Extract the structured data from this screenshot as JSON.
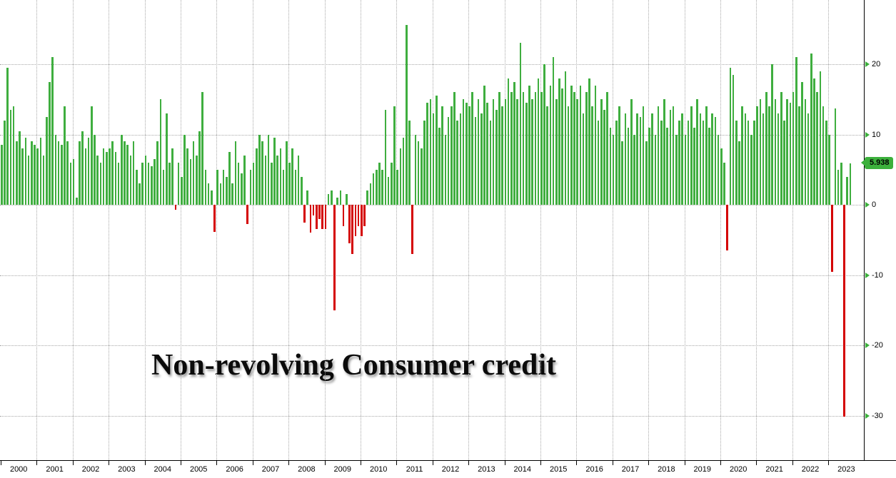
{
  "chart": {
    "title": "Non-revolving Consumer credit",
    "last_value_label": "5.938",
    "colors": {
      "positive": "#3fae3f",
      "negative": "#d40000",
      "accent_green": "#3cb03c",
      "grid": "#a8a8a8",
      "axis": "#000000",
      "background": "#ffffff",
      "title_text": "#0b0b0b"
    },
    "y_axis": {
      "ticks": [
        20,
        10,
        0,
        -10,
        -20,
        -30
      ]
    },
    "x_axis": {
      "years": [
        "2000",
        "2001",
        "2002",
        "2003",
        "2004",
        "2005",
        "2006",
        "2007",
        "2008",
        "2009",
        "2010",
        "2011",
        "2012",
        "2013",
        "2014",
        "2015",
        "2016",
        "2017",
        "2018",
        "2019",
        "2020",
        "2021",
        "2022",
        "2023"
      ]
    }
  },
  "chart_data": {
    "type": "bar",
    "title": "Non-revolving Consumer credit",
    "frequency": "monthly",
    "x_start": "2000-01",
    "ylim": [
      -36,
      29
    ],
    "yticks": [
      20,
      10,
      0,
      -10,
      -20,
      -30
    ],
    "grid": true,
    "legend": "none",
    "last_value": 5.938,
    "series": [
      {
        "year": 2000,
        "values": [
          8.5,
          12,
          19.5,
          13.5,
          14,
          9,
          10.5,
          8,
          9.5,
          7,
          9,
          8.5
        ]
      },
      {
        "year": 2001,
        "values": [
          8,
          9.5,
          7,
          12.5,
          17.5,
          21,
          10,
          9,
          8.5,
          14,
          9,
          6
        ]
      },
      {
        "year": 2002,
        "values": [
          6.5,
          1,
          9,
          10.5,
          8,
          9.5,
          14,
          10,
          7,
          6,
          8,
          7.5
        ]
      },
      {
        "year": 2003,
        "values": [
          8,
          9,
          7.5,
          6,
          10,
          9,
          8.5,
          7,
          9,
          5,
          3,
          6
        ]
      },
      {
        "year": 2004,
        "values": [
          7,
          6,
          5.5,
          6.5,
          9,
          15,
          5,
          13,
          6,
          8,
          -0.7,
          6
        ]
      },
      {
        "year": 2005,
        "values": [
          4,
          10,
          8,
          6.5,
          9,
          7,
          10.5,
          16,
          5,
          3,
          2,
          -3.9
        ]
      },
      {
        "year": 2006,
        "values": [
          5,
          3,
          5,
          4,
          7.5,
          3,
          9,
          6,
          4.5,
          7,
          -2.7,
          5
        ]
      },
      {
        "year": 2007,
        "values": [
          6,
          8,
          10,
          9,
          7,
          10,
          6,
          9.5,
          7,
          8,
          5,
          9
        ]
      },
      {
        "year": 2008,
        "values": [
          6,
          8,
          5,
          7,
          4,
          -2.5,
          2,
          -4,
          -1.5,
          -3.5,
          -2,
          -3.5
        ]
      },
      {
        "year": 2009,
        "values": [
          -3.5,
          1.5,
          2,
          -15,
          1,
          2,
          -3,
          1.5,
          -5.5,
          -7,
          -4.5,
          -3
        ]
      },
      {
        "year": 2010,
        "values": [
          -4.5,
          -3,
          2,
          3,
          4.5,
          5,
          6,
          5,
          13.5,
          4,
          6,
          14
        ]
      },
      {
        "year": 2011,
        "values": [
          5,
          8,
          9.5,
          25.6,
          12,
          -7,
          10,
          9,
          8,
          12,
          14.5,
          15
        ]
      },
      {
        "year": 2012,
        "values": [
          13,
          15.5,
          11,
          14,
          10,
          12.5,
          14,
          16,
          12,
          13,
          15,
          14.5
        ]
      },
      {
        "year": 2013,
        "values": [
          14,
          16,
          12.5,
          15,
          13,
          17,
          14.5,
          12,
          15,
          13.5,
          16,
          14
        ]
      },
      {
        "year": 2014,
        "values": [
          15,
          18,
          16,
          17.5,
          15,
          23,
          16,
          14.5,
          17,
          15,
          16,
          18
        ]
      },
      {
        "year": 2015,
        "values": [
          16,
          20,
          14,
          17,
          21,
          15,
          18,
          16.5,
          19,
          14,
          17,
          16
        ]
      },
      {
        "year": 2016,
        "values": [
          15,
          17,
          13,
          16,
          18,
          14,
          17,
          12,
          15,
          13.5,
          16,
          11
        ]
      },
      {
        "year": 2017,
        "values": [
          10,
          12,
          14,
          9,
          13,
          11,
          15,
          10,
          13,
          12.5,
          14,
          9
        ]
      },
      {
        "year": 2018,
        "values": [
          11,
          13,
          10,
          14,
          12,
          15,
          11,
          13.5,
          14,
          10,
          12,
          13
        ]
      },
      {
        "year": 2019,
        "values": [
          10,
          12,
          14,
          11,
          15,
          13,
          12,
          14,
          11,
          13,
          12.5,
          10
        ]
      },
      {
        "year": 2020,
        "values": [
          8,
          6,
          -6.5,
          19.5,
          18.5,
          12,
          9,
          14,
          13,
          12,
          10,
          12
        ]
      },
      {
        "year": 2021,
        "values": [
          14,
          15,
          13,
          16,
          14,
          20,
          15,
          13,
          16,
          12,
          15,
          14.5
        ]
      },
      {
        "year": 2022,
        "values": [
          16,
          21,
          14,
          17.5,
          15,
          13,
          21.5,
          18,
          16,
          19,
          14,
          12
        ]
      },
      {
        "year": 2023,
        "values": [
          10,
          -9.5,
          13.7,
          5,
          6,
          -30.2,
          4,
          5.938
        ]
      }
    ]
  }
}
